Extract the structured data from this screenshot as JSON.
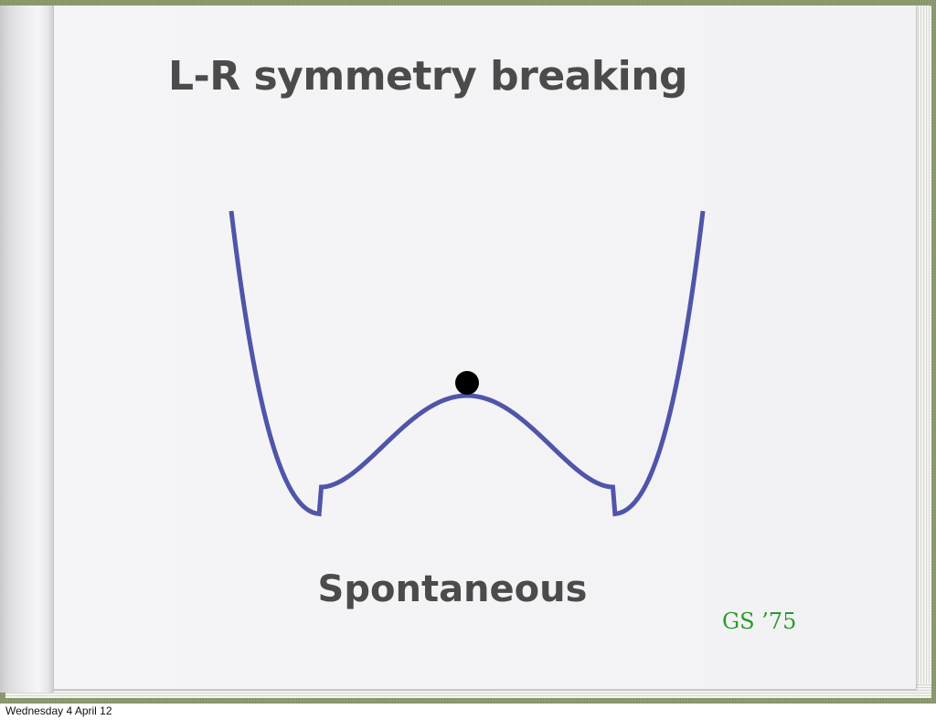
{
  "slide": {
    "title": "L-R symmetry breaking",
    "subtitle": "Spontaneous",
    "citation": "GS ’75"
  },
  "footer": {
    "date": "Wednesday 4 April 12"
  },
  "colors": {
    "curve": "#4f55a8",
    "ball": "#000000",
    "title_text": "#4b4b4b",
    "citation_text": "#2e9a2e"
  },
  "diagram": {
    "type": "double-well potential",
    "ball_position": "top of central hump"
  }
}
